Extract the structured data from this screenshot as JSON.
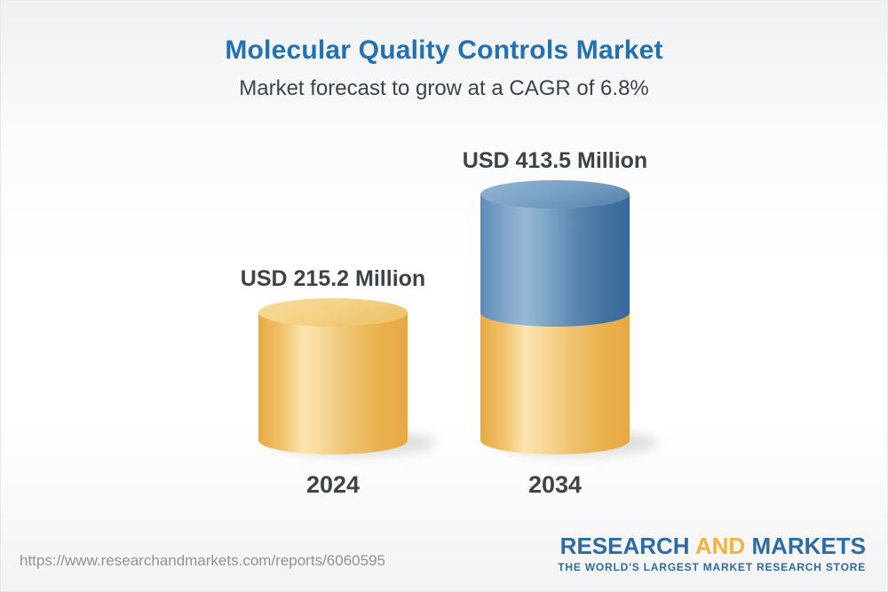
{
  "header": {
    "title": "Molecular Quality Controls Market",
    "subtitle": "Market forecast to grow at a CAGR of 6.8%"
  },
  "chart_data": {
    "type": "bar",
    "subtype": "3d-cylinder-stacked",
    "title": "Molecular Quality Controls Market",
    "cagr_percent": 6.8,
    "categories": [
      "2024",
      "2034"
    ],
    "values": [
      215.2,
      413.5
    ],
    "value_labels": [
      "USD 215.2 Million",
      "USD 413.5 Million"
    ],
    "unit": "USD Million",
    "axes": "none",
    "legend": "none",
    "notes": "2034 cylinder is stacked: yellow base equal to the 2024 value with blue growth segment on top",
    "bar_colors": {
      "base_yellow": "#f0bd57",
      "growth_blue": "#4e7da9"
    }
  },
  "footer": {
    "url": "https://www.researchandmarkets.com/reports/6060595",
    "logo": {
      "part1": "RESEARCH",
      "part2": "AND",
      "part3": "MARKETS",
      "tagline": "THE WORLD'S LARGEST MARKET RESEARCH STORE"
    }
  },
  "colors": {
    "title_blue": "#2371b0",
    "text_dark": "#3e4347",
    "url_gray": "#8f9397",
    "logo_blue": "#2d6ba5",
    "logo_gold": "#f3b33c",
    "background_top": "#eff0f2",
    "background_bottom": "#f3f3f5"
  }
}
